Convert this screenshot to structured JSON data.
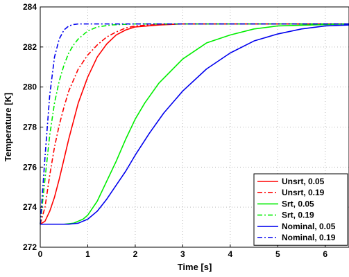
{
  "chart_data": {
    "type": "line",
    "title": "",
    "xlabel": "Time [s]",
    "ylabel": "Temperature [K]",
    "xlim": [
      0,
      6.5
    ],
    "ylim": [
      272,
      284
    ],
    "xticks": [
      "0",
      "1",
      "2",
      "3",
      "4",
      "5",
      "6"
    ],
    "yticks": [
      "272",
      "274",
      "276",
      "278",
      "280",
      "282",
      "284"
    ],
    "grid": true,
    "legend_position": "bottom-right",
    "y_start": 273.15,
    "y_final": 283.15,
    "series": [
      {
        "name": "Unsrt, 0.05",
        "color": "#ff0000",
        "dash": "solid",
        "x": [
          0,
          0.1,
          0.2,
          0.3,
          0.4,
          0.5,
          0.6,
          0.8,
          1.0,
          1.2,
          1.4,
          1.6,
          1.8,
          2.0,
          2.5,
          3.0,
          4.0,
          5.0,
          6.5
        ],
        "y": [
          273.15,
          273.3,
          273.8,
          274.5,
          275.4,
          276.4,
          277.4,
          279.2,
          280.5,
          281.5,
          282.15,
          282.6,
          282.85,
          283.0,
          283.1,
          283.15,
          283.15,
          283.15,
          283.15
        ]
      },
      {
        "name": "Unsrt, 0.19",
        "color": "#ff0000",
        "dash": "dashdot",
        "x": [
          0,
          0.1,
          0.2,
          0.3,
          0.4,
          0.5,
          0.6,
          0.8,
          1.0,
          1.2,
          1.4,
          1.6,
          1.8,
          2.0,
          2.5,
          3.0,
          6.5
        ],
        "y": [
          273.15,
          274.0,
          275.6,
          277.0,
          278.1,
          279.0,
          279.8,
          280.9,
          281.6,
          282.1,
          282.5,
          282.75,
          282.95,
          283.05,
          283.13,
          283.15,
          283.15
        ]
      },
      {
        "name": "Srt, 0.05",
        "color": "#00ee00",
        "dash": "solid",
        "x": [
          0,
          0.5,
          0.7,
          0.9,
          1.0,
          1.2,
          1.4,
          1.6,
          1.8,
          2.0,
          2.2,
          2.5,
          3.0,
          3.5,
          4.0,
          4.5,
          5.0,
          6.5
        ],
        "y": [
          273.15,
          273.15,
          273.2,
          273.4,
          273.6,
          274.3,
          275.3,
          276.3,
          277.4,
          278.4,
          279.2,
          280.2,
          281.4,
          282.2,
          282.6,
          282.9,
          283.05,
          283.15
        ]
      },
      {
        "name": "Srt, 0.19",
        "color": "#00ee00",
        "dash": "dashdot",
        "x": [
          0,
          0.1,
          0.2,
          0.3,
          0.4,
          0.5,
          0.6,
          0.7,
          0.8,
          0.9,
          1.0,
          1.2,
          1.5,
          2.0,
          6.5
        ],
        "y": [
          273.15,
          275.4,
          277.6,
          279.2,
          280.3,
          281.1,
          281.7,
          282.1,
          282.4,
          282.6,
          282.8,
          283.0,
          283.1,
          283.15,
          283.15
        ]
      },
      {
        "name": "Nominal, 0.05",
        "color": "#0000ee",
        "dash": "solid",
        "x": [
          0,
          0.6,
          0.8,
          1.0,
          1.2,
          1.4,
          1.6,
          1.8,
          2.0,
          2.3,
          2.6,
          3.0,
          3.5,
          4.0,
          4.5,
          5.0,
          5.5,
          6.0,
          6.5
        ],
        "y": [
          273.15,
          273.15,
          273.2,
          273.4,
          273.8,
          274.4,
          275.1,
          275.8,
          276.6,
          277.7,
          278.7,
          279.8,
          280.9,
          281.7,
          282.3,
          282.65,
          282.9,
          283.05,
          283.1
        ]
      },
      {
        "name": "Nominal, 0.19",
        "color": "#0000ee",
        "dash": "dashdot",
        "x": [
          0,
          0.1,
          0.2,
          0.3,
          0.4,
          0.5,
          0.6,
          0.7,
          0.8,
          1.0,
          6.5
        ],
        "y": [
          273.15,
          276.5,
          279.6,
          281.5,
          282.4,
          282.85,
          283.05,
          283.12,
          283.15,
          283.15,
          283.15
        ]
      }
    ]
  }
}
